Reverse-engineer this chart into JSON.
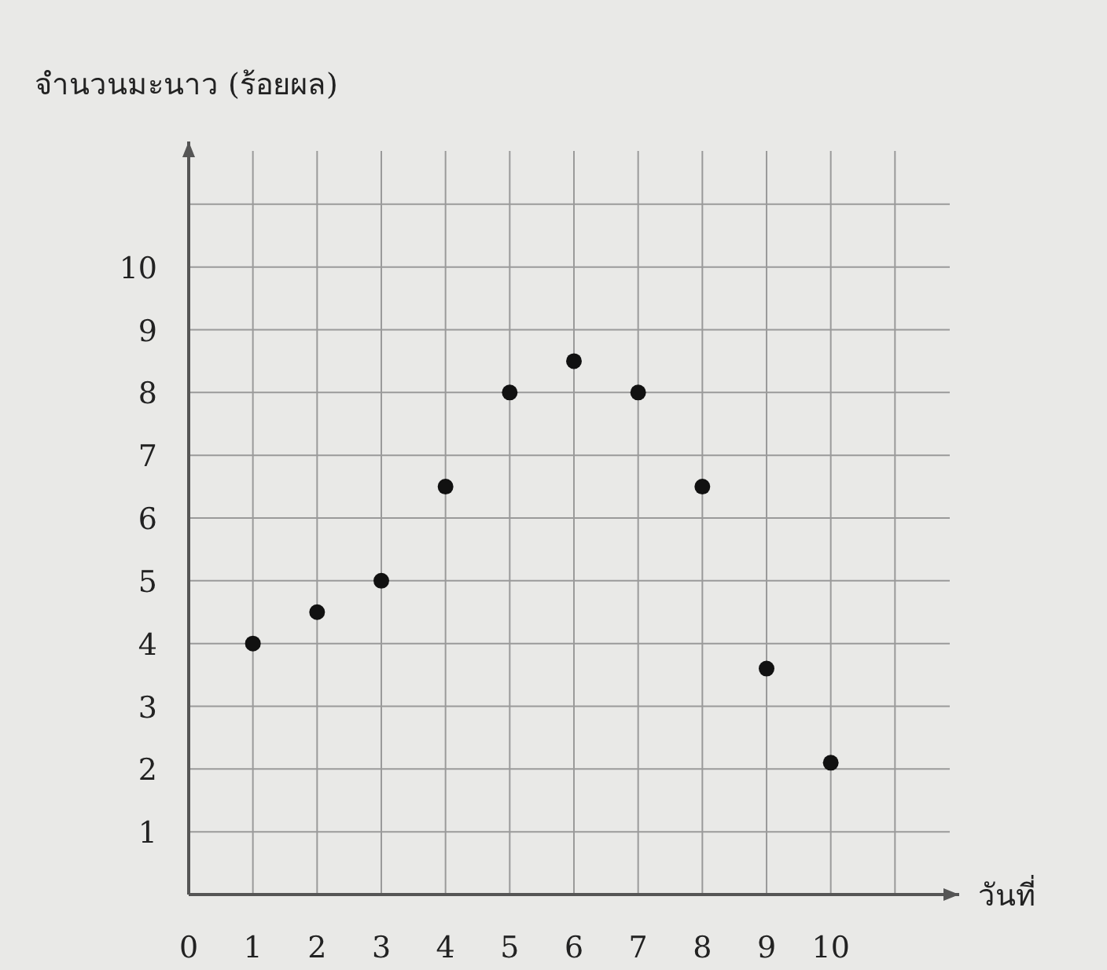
{
  "chart_data": {
    "type": "scatter",
    "xlabel": "วันที่",
    "ylabel": "จำนวนมะนาว (ร้อยผล)",
    "x": [
      1,
      2,
      3,
      4,
      5,
      6,
      7,
      8,
      9,
      10
    ],
    "series": [
      {
        "color": "#111111",
        "values": [
          4,
          4.5,
          5,
          6.5,
          8,
          8.5,
          8,
          6.5,
          3.6,
          2.1
        ]
      }
    ],
    "xlim": [
      0,
      12
    ],
    "ylim": [
      0,
      12
    ],
    "xticks": [
      0,
      1,
      2,
      3,
      4,
      5,
      6,
      7,
      8,
      9,
      10,
      {
        "value": 11,
        "label": null
      }
    ],
    "yticks": [
      {
        "value": 0,
        "label": null
      },
      1,
      2,
      3,
      4,
      5,
      6,
      7,
      8,
      9,
      10,
      {
        "value": 11,
        "label": null
      }
    ],
    "grid": true,
    "marker": "circle"
  }
}
